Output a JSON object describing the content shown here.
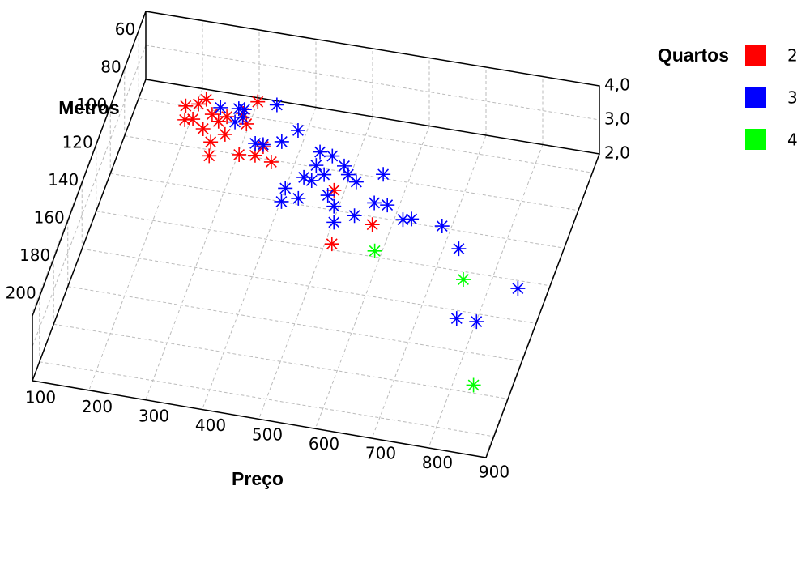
{
  "chart_data": {
    "type": "scatter3d",
    "xlabel": "Preço",
    "ylabel": "Metros",
    "legend_title": "Quartos",
    "xlim": [
      100,
      900
    ],
    "xticks": [
      100,
      200,
      300,
      400,
      500,
      600,
      700,
      800,
      900
    ],
    "ylim": [
      50,
      210
    ],
    "yticks": [
      60,
      80,
      100,
      120,
      140,
      160,
      180,
      200
    ],
    "zlim": [
      2,
      4
    ],
    "zticks": [
      {
        "value": 2,
        "label": "2,0"
      },
      {
        "value": 3,
        "label": "3,0"
      },
      {
        "value": 4,
        "label": "4,0"
      }
    ],
    "grid": true,
    "legend": "right",
    "series": [
      {
        "name": "2",
        "color": "#ff0000",
        "x": [
          183,
          203,
          203,
          213,
          232,
          226,
          247,
          190,
          258,
          300,
          247,
          266,
          253,
          302,
          329,
          360,
          337,
          482,
          567,
          512,
          283,
          295
        ],
        "y": [
          60,
          58,
          66,
          55,
          62,
          70,
          65,
          67,
          62,
          52,
          76,
          71,
          83,
          80,
          79,
          81,
          74,
          90,
          104,
          117,
          59,
          64
        ],
        "z": [
          2,
          2,
          2,
          2,
          2,
          2,
          2,
          2,
          2,
          2,
          2,
          2,
          2,
          2,
          2,
          2,
          2,
          2,
          2,
          2,
          2,
          2
        ]
      },
      {
        "name": "3",
        "color": "#0000ff",
        "x": [
          263,
          294,
          306,
          296,
          304,
          355,
          343,
          357,
          386,
          406,
          456,
          479,
          458,
          505,
          517,
          477,
          445,
          460,
          496,
          535,
          575,
          578,
          601,
          421,
          423,
          449,
          513,
          553,
          523,
          636,
          650,
          705,
          747,
          870,
          787,
          822
        ],
        "y": [
          75,
          74,
          78,
          81,
          74,
          69,
          90,
          90,
          87,
          80,
          89,
          90,
          96,
          94,
          98,
          100,
          103,
          104,
          110,
          101,
          95,
          110,
          110,
          110,
          117,
          114,
          115,
          118,
          123,
          116,
          115,
          116,
          126,
          141,
          161,
          161
        ],
        "z": [
          3,
          3,
          3,
          3,
          3,
          3,
          3,
          3,
          3,
          3,
          3,
          3,
          3,
          3,
          3,
          3,
          3,
          3,
          3,
          3,
          3,
          3,
          3,
          3,
          3,
          3,
          3,
          3,
          3,
          3,
          3,
          3,
          3,
          3,
          3,
          3
        ]
      },
      {
        "name": "4",
        "color": "#00ff00",
        "x": [
          630,
          795,
          878
        ],
        "y": [
          151,
          158,
          210
        ],
        "z": [
          4,
          4,
          4
        ]
      }
    ]
  }
}
